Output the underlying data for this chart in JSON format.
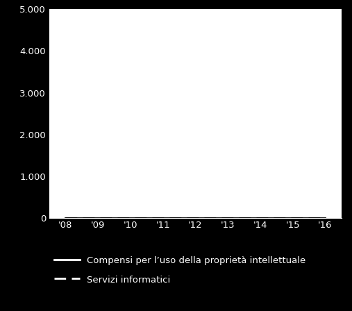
{
  "x_labels": [
    "'08",
    "'09",
    "'10",
    "'11",
    "'12",
    "'13",
    "'14",
    "'15",
    "'16"
  ],
  "x_values": [
    2008,
    2009,
    2010,
    2011,
    2012,
    2013,
    2014,
    2015,
    2016
  ],
  "ylim": [
    0,
    5000
  ],
  "yticks": [
    0,
    1000,
    2000,
    3000,
    4000,
    5000
  ],
  "ytick_labels": [
    "0",
    "1.000",
    "2.000",
    "3.000",
    "4.000",
    "5.000"
  ],
  "line1_label": "Compensi per l’uso della proprietà intellettuale",
  "line2_label": "Servizi informatici",
  "line1_color": "#ffffff",
  "line2_color": "#ffffff",
  "text_color": "#ffffff",
  "plot_bg_color": "#ffffff",
  "fig_bg_color": "#000000",
  "tick_fontsize": 9.5,
  "legend_fontsize": 9.5,
  "line1_values": [
    0,
    0,
    0,
    0,
    0,
    0,
    0,
    0,
    0
  ],
  "line2_values": [
    0,
    0,
    0,
    0,
    0,
    0,
    0,
    0,
    0
  ]
}
